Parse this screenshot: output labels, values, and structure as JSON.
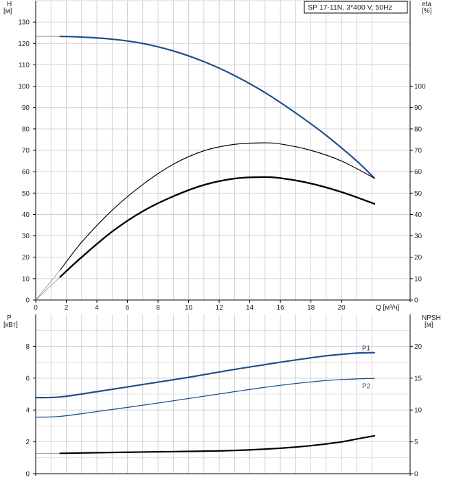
{
  "legend_text": "SP 17-11N, 3*400 V, 50Hz",
  "colors": {
    "grid": "#c8c8c8",
    "axis": "#000000",
    "blue": "#1f4e8c",
    "black": "#000000"
  },
  "chart_data": [
    {
      "type": "line",
      "panel": "top",
      "left_axis": {
        "label_top": "H",
        "label_unit": "[м]",
        "ylim": [
          0,
          140
        ],
        "ticks": [
          0,
          10,
          20,
          30,
          40,
          50,
          60,
          70,
          80,
          90,
          100,
          110,
          120,
          130
        ]
      },
      "right_axis": {
        "label_top": "eta",
        "label_unit": "[%]",
        "ylim": [
          0,
          140
        ],
        "ticks": [
          0,
          10,
          20,
          30,
          40,
          50,
          60,
          70,
          80,
          90,
          100
        ]
      },
      "x_axis": {
        "label": "Q [м³/ч]",
        "xlim": [
          0,
          22.15
        ],
        "ticks": [
          0,
          2,
          4,
          6,
          8,
          10,
          12,
          14,
          16,
          18,
          20
        ]
      },
      "grid": true,
      "series": [
        {
          "role": "H",
          "axis": "left",
          "color": "blue",
          "width": 2.2,
          "x": [
            0,
            1.6,
            3,
            5,
            7,
            9,
            11,
            13,
            15,
            17,
            19,
            21,
            22.15
          ],
          "y": [
            123.3,
            123.3,
            123.0,
            122.0,
            120.0,
            116.5,
            111.5,
            105.0,
            97.0,
            87.5,
            77.0,
            65.0,
            57.0
          ],
          "segment_style": {
            "until_x": 1.6,
            "color": "#888888",
            "width": 1
          }
        },
        {
          "role": "eta-total",
          "axis": "right",
          "color": "black",
          "width": 1.2,
          "x": [
            0,
            1.6,
            3,
            5,
            7,
            9,
            11,
            13,
            14.8,
            16,
            18,
            20,
            22.15
          ],
          "y": [
            0,
            14.0,
            27.0,
            42.0,
            54.0,
            63.5,
            69.8,
            72.8,
            73.5,
            73.0,
            70.0,
            65.0,
            57.0
          ],
          "segment_style": {
            "until_x": 1.6,
            "color": "#888888",
            "width": 0.8
          }
        },
        {
          "role": "eta-pump",
          "axis": "right",
          "color": "black",
          "width": 2.4,
          "x": [
            1.6,
            3,
            5,
            7,
            9,
            11,
            13,
            14.8,
            16,
            18,
            20,
            22.15
          ],
          "y": [
            10.8,
            20.0,
            32.0,
            41.5,
            48.5,
            53.8,
            56.8,
            57.5,
            57.0,
            54.5,
            50.5,
            45.0
          ],
          "start_line": {
            "x": [
              0,
              1.6
            ],
            "y": [
              0,
              10.8
            ],
            "color": "#888888",
            "width": 0.8
          }
        }
      ]
    },
    {
      "type": "line",
      "panel": "bottom",
      "left_axis": {
        "label_top": "P",
        "label_unit": "[кВт]",
        "ylim": [
          0,
          10
        ],
        "ticks": [
          0,
          2,
          4,
          6,
          8
        ]
      },
      "right_axis": {
        "label_top": "NPSH",
        "label_unit": "[м]",
        "ylim": [
          0,
          25
        ],
        "ticks": [
          0,
          5,
          10,
          15,
          20
        ]
      },
      "x_axis": {
        "xlim": [
          0,
          22.15
        ]
      },
      "grid": true,
      "series": [
        {
          "name": "P1",
          "axis": "left",
          "color": "blue",
          "width": 2.2,
          "x": [
            0,
            1.6,
            4,
            7,
            10,
            13,
            16,
            19,
            21,
            22.15
          ],
          "y": [
            4.78,
            4.82,
            5.15,
            5.6,
            6.05,
            6.55,
            7.0,
            7.4,
            7.57,
            7.6
          ]
        },
        {
          "name": "P2",
          "axis": "left",
          "color": "blue",
          "width": 1.3,
          "x": [
            0,
            1.6,
            4,
            7,
            10,
            13,
            16,
            19,
            21,
            22.15
          ],
          "y": [
            3.55,
            3.6,
            3.9,
            4.3,
            4.72,
            5.15,
            5.55,
            5.85,
            5.95,
            5.98
          ]
        },
        {
          "role": "NPSH",
          "axis": "right",
          "color": "black",
          "width": 2.2,
          "x": [
            1.6,
            4,
            7,
            10,
            13,
            16,
            18,
            20,
            21,
            22.15
          ],
          "y": [
            3.2,
            3.3,
            3.4,
            3.5,
            3.65,
            4.0,
            4.4,
            5.0,
            5.45,
            5.95
          ],
          "start_line": {
            "x": [
              0,
              1.6
            ],
            "y": [
              3.2,
              3.2
            ],
            "color": "#888888",
            "width": 0.8
          }
        }
      ]
    }
  ]
}
